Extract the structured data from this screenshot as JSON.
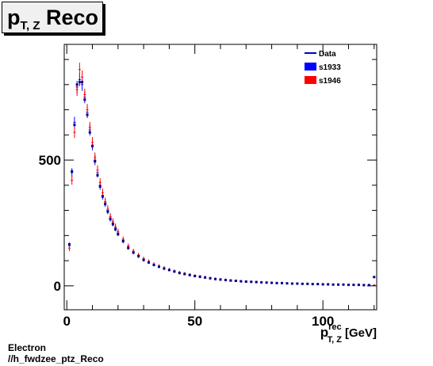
{
  "header": {
    "title_main": "p",
    "title_sub": "T, Z",
    "title_rest": " Reco"
  },
  "footer": {
    "line1": "Electron",
    "line2": "//h_fwdzee_ptz_Reco"
  },
  "chart_data": {
    "type": "scatter",
    "title": "pT, Z Reco",
    "xlabel": {
      "main": "p",
      "sup": "rec",
      "sub": "T, Z",
      "unit": "[GeV]"
    },
    "ylabel": "",
    "xlim": [
      -1,
      121
    ],
    "ylim": [
      -95,
      960
    ],
    "x_ticks": [
      0,
      50,
      100
    ],
    "y_ticks": [
      0,
      500
    ],
    "grid": false,
    "legend_position": "top-right",
    "legend": [
      {
        "label": "Data",
        "kind": "line",
        "color": "#0000cc"
      },
      {
        "label": "s1933",
        "kind": "box",
        "color": "#0000ff"
      },
      {
        "label": "s1946",
        "kind": "box",
        "color": "#ff0000"
      }
    ],
    "colors": {
      "data": "#00008b",
      "s1933": "#0000ff",
      "s1946": "#ff0000"
    },
    "series": [
      {
        "name": "s1933",
        "color": "#0000ff",
        "x": [
          1,
          2,
          3,
          4,
          5,
          6,
          7,
          8,
          9,
          10,
          11,
          12,
          13,
          14,
          15,
          16,
          17,
          18,
          19,
          20,
          22,
          24,
          26,
          28,
          30,
          32,
          34,
          36,
          38,
          40,
          42,
          44,
          46,
          48,
          50,
          52,
          54,
          56,
          58,
          60,
          62,
          64,
          66,
          68,
          70,
          72,
          74,
          76,
          78,
          80,
          82,
          84,
          86,
          88,
          90,
          92,
          94,
          96,
          98,
          100,
          102,
          104,
          106,
          108,
          110,
          112,
          114,
          116,
          118,
          120
        ],
        "y": [
          160,
          450,
          650,
          790,
          820,
          800,
          750,
          690,
          620,
          560,
          500,
          450,
          400,
          360,
          330,
          300,
          270,
          250,
          230,
          210,
          180,
          155,
          135,
          120,
          105,
          95,
          85,
          78,
          70,
          64,
          58,
          52,
          48,
          44,
          40,
          37,
          34,
          31,
          28,
          26,
          24,
          22,
          20,
          19,
          18,
          17,
          16,
          15,
          14,
          13,
          12,
          11,
          10,
          10,
          9,
          9,
          8,
          8,
          7,
          7,
          6,
          6,
          5,
          5,
          5,
          4,
          4,
          4,
          3,
          3
        ],
        "err": [
          12,
          18,
          22,
          25,
          26,
          25,
          24,
          23,
          22,
          21,
          20,
          19,
          18,
          17,
          16,
          15,
          14,
          13,
          13,
          12,
          11,
          10,
          9,
          9,
          8,
          8,
          7,
          7,
          7,
          6,
          6,
          6,
          6,
          5,
          5,
          5,
          5,
          4,
          4,
          4,
          4,
          4,
          4,
          4,
          3,
          3,
          3,
          3,
          3,
          3,
          3,
          3,
          3,
          3,
          3,
          3,
          2,
          2,
          2,
          2,
          2,
          2,
          2,
          2,
          2,
          2,
          2,
          2,
          2,
          2
        ]
      },
      {
        "name": "s1946",
        "color": "#ff0000",
        "x": [
          1,
          2,
          3,
          4,
          5,
          6,
          7,
          8,
          9,
          10,
          11,
          12,
          13,
          14,
          15,
          16,
          17,
          18,
          19,
          20,
          22,
          24,
          26,
          28,
          30,
          32,
          34,
          36,
          38,
          40,
          42,
          44,
          46,
          48,
          50,
          52,
          54,
          56,
          58,
          60,
          62,
          64,
          66,
          68,
          70,
          72,
          74,
          76,
          78,
          80,
          82,
          84,
          86,
          88,
          90,
          92,
          94,
          96,
          98,
          100,
          102,
          104,
          106,
          108,
          110,
          112,
          114,
          116,
          118,
          120
        ],
        "y": [
          150,
          420,
          610,
          780,
          860,
          830,
          760,
          700,
          630,
          570,
          510,
          460,
          410,
          370,
          335,
          305,
          275,
          255,
          235,
          215,
          185,
          158,
          138,
          122,
          108,
          97,
          87,
          79,
          72,
          65,
          59,
          53,
          49,
          45,
          41,
          38,
          35,
          32,
          29,
          27,
          25,
          23,
          21,
          19,
          18,
          17,
          16,
          15,
          14,
          13,
          12,
          11,
          11,
          10,
          9,
          9,
          8,
          8,
          7,
          7,
          6,
          6,
          5,
          5,
          5,
          4,
          4,
          4,
          3,
          3
        ],
        "err": [
          12,
          18,
          22,
          25,
          27,
          26,
          24,
          23,
          22,
          21,
          20,
          19,
          18,
          17,
          16,
          15,
          14,
          13,
          13,
          12,
          11,
          10,
          9,
          9,
          8,
          8,
          7,
          7,
          7,
          6,
          6,
          6,
          6,
          5,
          5,
          5,
          5,
          4,
          4,
          4,
          4,
          4,
          4,
          4,
          3,
          3,
          3,
          3,
          3,
          3,
          3,
          3,
          3,
          3,
          3,
          3,
          2,
          2,
          2,
          2,
          2,
          2,
          2,
          2,
          2,
          2,
          2,
          2,
          2,
          2
        ]
      },
      {
        "name": "Data",
        "color": "#00008b",
        "x": [
          1,
          2,
          3,
          4,
          5,
          6,
          7,
          8,
          9,
          10,
          11,
          12,
          13,
          14,
          15,
          16,
          17,
          18,
          19,
          20,
          22,
          24,
          26,
          28,
          30,
          32,
          34,
          36,
          38,
          40,
          42,
          44,
          46,
          48,
          50,
          52,
          54,
          56,
          58,
          60,
          62,
          64,
          66,
          68,
          70,
          72,
          74,
          76,
          78,
          80,
          82,
          84,
          86,
          88,
          90,
          92,
          94,
          96,
          98,
          100,
          102,
          104,
          106,
          108,
          110,
          112,
          114,
          116,
          118,
          120
        ],
        "y": [
          165,
          455,
          640,
          800,
          810,
          810,
          740,
          680,
          610,
          555,
          495,
          440,
          395,
          355,
          325,
          295,
          265,
          245,
          225,
          205,
          178,
          150,
          132,
          118,
          103,
          93,
          83,
          76,
          69,
          63,
          57,
          51,
          47,
          43,
          39,
          36,
          33,
          30,
          27,
          25,
          23,
          21,
          20,
          18,
          17,
          16,
          15,
          14,
          13,
          12,
          11,
          11,
          10,
          9,
          9,
          8,
          8,
          7,
          7,
          6,
          6,
          5,
          5,
          5,
          4,
          4,
          4,
          3,
          3,
          35
        ]
      }
    ]
  }
}
